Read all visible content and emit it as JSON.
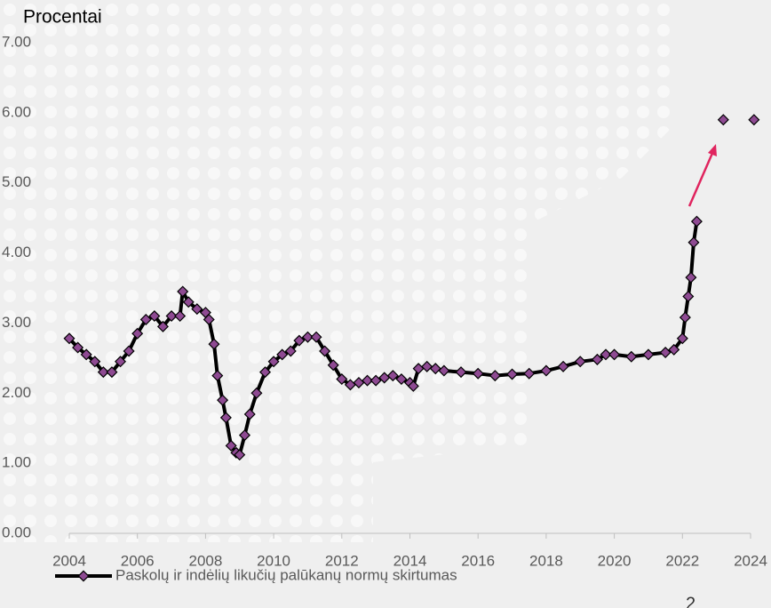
{
  "chart_data": {
    "type": "line",
    "y_axis_label": "Procentai",
    "x": [
      2004.0,
      2004.25,
      2004.5,
      2004.75,
      2005.0,
      2005.25,
      2005.5,
      2005.75,
      2006.0,
      2006.25,
      2006.5,
      2006.75,
      2007.0,
      2007.25,
      2007.33,
      2007.5,
      2007.75,
      2008.0,
      2008.1,
      2008.25,
      2008.35,
      2008.5,
      2008.6,
      2008.75,
      2008.9,
      2009.0,
      2009.15,
      2009.3,
      2009.5,
      2009.75,
      2010.0,
      2010.25,
      2010.5,
      2010.75,
      2011.0,
      2011.25,
      2011.5,
      2011.75,
      2012.0,
      2012.25,
      2012.5,
      2012.75,
      2013.0,
      2013.25,
      2013.5,
      2013.75,
      2014.0,
      2014.1,
      2014.25,
      2014.5,
      2014.75,
      2015.0,
      2015.5,
      2016.0,
      2016.5,
      2017.0,
      2017.5,
      2018.0,
      2018.5,
      2019.0,
      2019.5,
      2019.75,
      2020.0,
      2020.5,
      2021.0,
      2021.5,
      2021.75,
      2022.0,
      2022.08,
      2022.17,
      2022.25,
      2022.33,
      2022.42
    ],
    "series": [
      {
        "name": "Paskolų ir indėlių likučių palūkanų normų skirtumas",
        "color": "#8e4a92",
        "line_color": "#000000",
        "values": [
          2.78,
          2.65,
          2.55,
          2.45,
          2.3,
          2.3,
          2.45,
          2.6,
          2.85,
          3.05,
          3.1,
          2.95,
          3.1,
          3.1,
          3.45,
          3.3,
          3.2,
          3.15,
          3.05,
          2.7,
          2.25,
          1.9,
          1.65,
          1.25,
          1.15,
          1.12,
          1.4,
          1.7,
          2.0,
          2.3,
          2.45,
          2.55,
          2.6,
          2.75,
          2.8,
          2.8,
          2.6,
          2.4,
          2.2,
          2.12,
          2.15,
          2.18,
          2.18,
          2.22,
          2.25,
          2.2,
          2.15,
          2.1,
          2.35,
          2.38,
          2.35,
          2.32,
          2.3,
          2.28,
          2.25,
          2.27,
          2.28,
          2.32,
          2.38,
          2.45,
          2.48,
          2.55,
          2.55,
          2.52,
          2.55,
          2.58,
          2.62,
          2.78,
          3.08,
          3.38,
          3.65,
          4.15,
          4.45
        ]
      }
    ],
    "markers": {
      "x": [
        2023.2,
        2024.1
      ],
      "values": [
        5.9,
        5.9
      ]
    },
    "xlim": [
      2004,
      2024
    ],
    "xticks": [
      2004,
      2006,
      2008,
      2010,
      2012,
      2014,
      2016,
      2018,
      2020,
      2022,
      2024
    ],
    "ylim": [
      0,
      7
    ],
    "yticks": [
      {
        "value": 0,
        "label": "0.00"
      },
      {
        "value": 1,
        "label": "1.00"
      },
      {
        "value": 2,
        "label": "2.00"
      },
      {
        "value": 3,
        "label": "3.00"
      },
      {
        "value": 4,
        "label": "4.00"
      },
      {
        "value": 5,
        "label": "5.00"
      },
      {
        "value": 6,
        "label": "6.00"
      },
      {
        "value": 7,
        "label": "7.00"
      }
    ],
    "legend": "bottom-left",
    "page_number": "2"
  }
}
